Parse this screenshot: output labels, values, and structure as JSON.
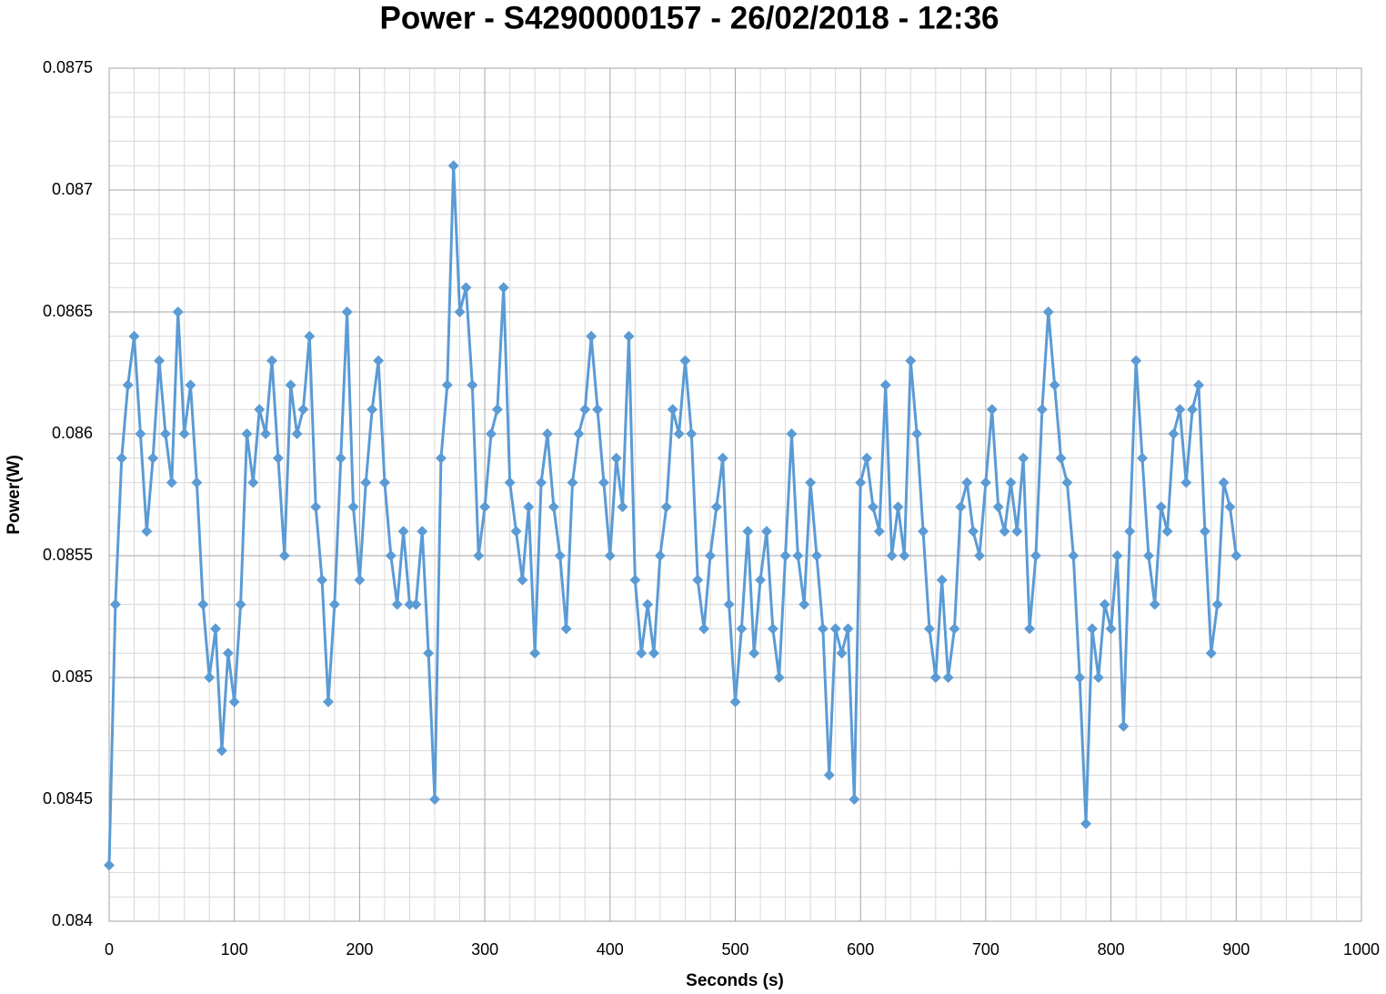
{
  "chart_data": {
    "type": "line",
    "title": "Power - S4290000157 - 26/02/2018 - 12:36",
    "x_label": "Seconds (s)",
    "y_label": "Power(W)",
    "color": "#5b9bd5",
    "grid": true,
    "marker": "diamond",
    "xlim": [
      0,
      1000
    ],
    "xticks": [
      0,
      100,
      200,
      300,
      400,
      500,
      600,
      700,
      800,
      900,
      1000
    ],
    "ylim": [
      0.084,
      0.0875
    ],
    "yticks": [
      0.084,
      0.0845,
      0.085,
      0.0855,
      0.086,
      0.0865,
      0.087,
      0.0875
    ],
    "x": [
      0,
      5,
      10,
      15,
      20,
      25,
      30,
      35,
      40,
      45,
      50,
      55,
      60,
      65,
      70,
      75,
      80,
      85,
      90,
      95,
      100,
      105,
      110,
      115,
      120,
      125,
      130,
      135,
      140,
      145,
      150,
      155,
      160,
      165,
      170,
      175,
      180,
      185,
      190,
      195,
      200,
      205,
      210,
      215,
      220,
      225,
      230,
      235,
      240,
      245,
      250,
      255,
      260,
      265,
      270,
      275,
      280,
      285,
      290,
      295,
      300,
      305,
      310,
      315,
      320,
      325,
      330,
      335,
      340,
      345,
      350,
      355,
      360,
      365,
      370,
      375,
      380,
      385,
      390,
      395,
      400,
      405,
      410,
      415,
      420,
      425,
      430,
      435,
      440,
      445,
      450,
      455,
      460,
      465,
      470,
      475,
      480,
      485,
      490,
      495,
      500,
      505,
      510,
      515,
      520,
      525,
      530,
      535,
      540,
      545,
      550,
      555,
      560,
      565,
      570,
      575,
      580,
      585,
      590,
      595,
      600,
      605,
      610,
      615,
      620,
      625,
      630,
      635,
      640,
      645,
      650,
      655,
      660,
      665,
      670,
      675,
      680,
      685,
      690,
      695,
      700,
      705,
      710,
      715,
      720,
      725,
      730,
      735,
      740,
      745,
      750,
      755,
      760,
      765,
      770,
      775,
      780,
      785,
      790,
      795,
      800,
      805,
      810,
      815,
      820,
      825,
      830,
      835,
      840,
      845,
      850,
      855,
      860,
      865,
      870,
      875,
      880,
      885,
      890,
      895,
      900
    ],
    "values": [
      0.08423,
      0.0853,
      0.0859,
      0.0862,
      0.0864,
      0.086,
      0.0856,
      0.0859,
      0.0863,
      0.086,
      0.0858,
      0.0865,
      0.086,
      0.0862,
      0.0858,
      0.0853,
      0.085,
      0.0852,
      0.0847,
      0.0851,
      0.0849,
      0.0853,
      0.086,
      0.0858,
      0.0861,
      0.086,
      0.0863,
      0.0859,
      0.0855,
      0.0862,
      0.086,
      0.0861,
      0.0864,
      0.0857,
      0.0854,
      0.0849,
      0.0853,
      0.0859,
      0.0865,
      0.0857,
      0.0854,
      0.0858,
      0.0861,
      0.0863,
      0.0858,
      0.0855,
      0.0853,
      0.0856,
      0.0853,
      0.0853,
      0.0856,
      0.0851,
      0.0845,
      0.0859,
      0.0862,
      0.0871,
      0.0865,
      0.0866,
      0.0862,
      0.0855,
      0.0857,
      0.086,
      0.0861,
      0.0866,
      0.0858,
      0.0856,
      0.0854,
      0.0857,
      0.0851,
      0.0858,
      0.086,
      0.0857,
      0.0855,
      0.0852,
      0.0858,
      0.086,
      0.0861,
      0.0864,
      0.0861,
      0.0858,
      0.0855,
      0.0859,
      0.0857,
      0.0864,
      0.0854,
      0.0851,
      0.0853,
      0.0851,
      0.0855,
      0.0857,
      0.0861,
      0.086,
      0.0863,
      0.086,
      0.0854,
      0.0852,
      0.0855,
      0.0857,
      0.0859,
      0.0853,
      0.0849,
      0.0852,
      0.0856,
      0.0851,
      0.0854,
      0.0856,
      0.0852,
      0.085,
      0.0855,
      0.086,
      0.0855,
      0.0853,
      0.0858,
      0.0855,
      0.0852,
      0.0846,
      0.0852,
      0.0851,
      0.0852,
      0.0845,
      0.0858,
      0.0859,
      0.0857,
      0.0856,
      0.0862,
      0.0855,
      0.0857,
      0.0855,
      0.0863,
      0.086,
      0.0856,
      0.0852,
      0.085,
      0.0854,
      0.085,
      0.0852,
      0.0857,
      0.0858,
      0.0856,
      0.0855,
      0.0858,
      0.0861,
      0.0857,
      0.0856,
      0.0858,
      0.0856,
      0.0859,
      0.0852,
      0.0855,
      0.0861,
      0.0865,
      0.0862,
      0.0859,
      0.0858,
      0.0855,
      0.085,
      0.0844,
      0.0852,
      0.085,
      0.0853,
      0.0852,
      0.0855,
      0.0848,
      0.0856,
      0.0863,
      0.0859,
      0.0855,
      0.0853,
      0.0857,
      0.0856,
      0.086,
      0.0861,
      0.0858,
      0.0861,
      0.0862,
      0.0856,
      0.0851,
      0.0853,
      0.0858,
      0.0857,
      0.0855
    ]
  }
}
